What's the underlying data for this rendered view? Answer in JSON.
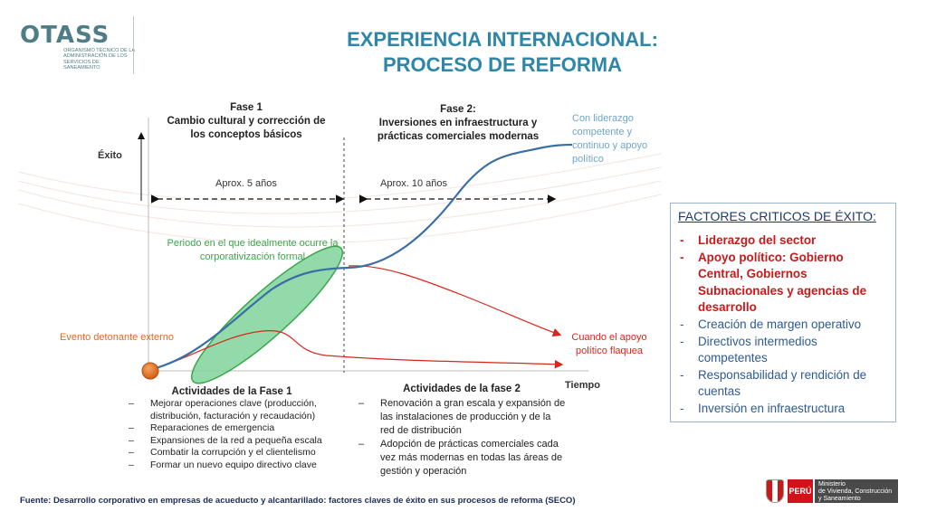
{
  "logo": {
    "name": "OTASS",
    "subtitle": "Organismo Técnico de la Administración de los Servicios de Saneamiento"
  },
  "title": {
    "line1": "EXPERIENCIA INTERNACIONAL:",
    "line2": "PROCESO DE REFORMA"
  },
  "diagram": {
    "y_axis_label": "Éxito",
    "x_axis_label": "Tiempo",
    "phase1": {
      "heading": "Fase 1",
      "description_line1": "Cambio cultural y corrección de",
      "description_line2": "los conceptos básicos",
      "duration": "Aprox. 5 años"
    },
    "phase2": {
      "heading": "Fase 2:",
      "description_line1": "Inversiones en infraestructura y",
      "description_line2": "prácticas comerciales modernas",
      "duration": "Aprox. 10 años"
    },
    "leadership_note": {
      "line1": "Con liderazgo",
      "line2": "competente y",
      "line3": "continuo y apoyo",
      "line4": "político"
    },
    "corporatization_note": {
      "line1": "Periodo en el que idealmente ocurre la",
      "line2": "corporativización formal"
    },
    "trigger_event": "Evento detonante externo",
    "support_weakens": {
      "line1": "Cuando el apoyo",
      "line2": "político flaquea"
    },
    "colors": {
      "success_curve": "#3a6fa6",
      "decline_curve": "#d9261c",
      "ellipse_fill": "#7fd39a",
      "ellipse_stroke": "#3aa64b",
      "trigger_dot": "#e06b1f"
    }
  },
  "activities_phase1": {
    "title": "Actividades de la Fase 1",
    "items": [
      "Mejorar operaciones clave (producción,",
      "distribución, facturación y recaudación)",
      "Reparaciones de emergencia",
      "Expansiones de la red a pequeña escala",
      "Combatir la corrupción y el clientelismo",
      "Formar un nuevo equipo directivo clave"
    ]
  },
  "activities_phase2": {
    "title": "Actividades de la fase 2",
    "items": [
      "Renovación a gran escala y expansión de las instalaciones de producción y de la red de distribución",
      "Adopción de prácticas comerciales cada vez más modernas en todas las áreas de gestión y operación"
    ]
  },
  "factors": {
    "title": "FACTORES CRITICOS DE ÉXITO:",
    "critical": [
      "Liderazgo del sector",
      "Apoyo político: Gobierno Central, Gobiernos Subnacionales y agencias de desarrollo"
    ],
    "others": [
      "Creación de margen operativo",
      "Directivos intermedios competentes",
      "Responsabilidad y rendición de cuentas",
      "Inversión en infraestructura"
    ]
  },
  "footer": {
    "source": "Fuente: Desarrollo corporativo en empresas de acueducto y alcantarillado: factores claves de éxito en sus procesos de reforma (SECO)"
  },
  "ministry": {
    "country": "PERÚ",
    "line1": "Ministerio",
    "line2": "de Vivienda, Construcción",
    "line3": "y Saneamiento"
  }
}
